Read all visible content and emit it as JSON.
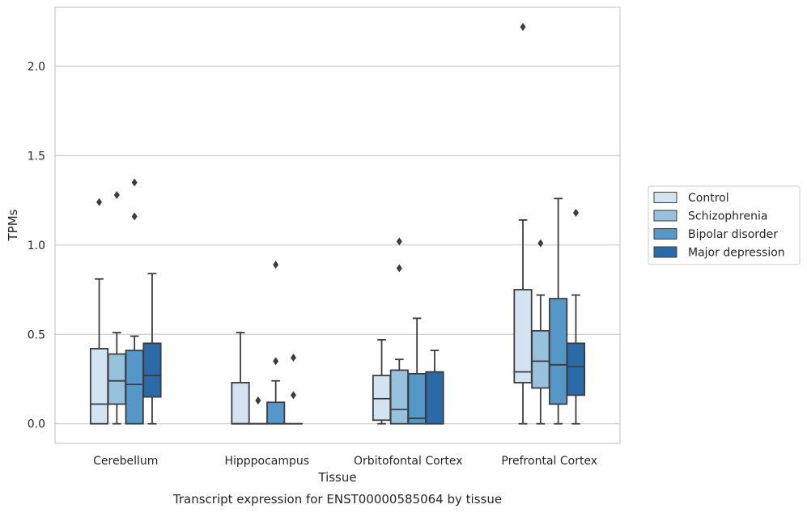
{
  "chart_data": {
    "type": "boxplot",
    "title": "",
    "xlabel": "Tissue",
    "ylabel": "TPMs",
    "caption": "Transcript expression for ENST00000585064 by tissue",
    "ylim": [
      -0.11,
      2.33
    ],
    "yticks": [
      "0.0",
      "0.5",
      "1.0",
      "1.5",
      "2.0"
    ],
    "grid": "horizontal",
    "legend_position": "right",
    "categories": [
      "Cerebellum",
      "Hipppocampus",
      "Orbitofontal Cortex",
      "Prefrontal Cortex"
    ],
    "series": [
      {
        "name": "Control",
        "color": "#d4e3f1",
        "boxes": [
          {
            "whislo": 0.0,
            "q1": 0.0,
            "med": 0.11,
            "q3": 0.42,
            "whishi": 0.81,
            "fliers": [
              1.24
            ]
          },
          {
            "whislo": 0.0,
            "q1": 0.0,
            "med": 0.0,
            "q3": 0.23,
            "whishi": 0.51,
            "fliers": []
          },
          {
            "whislo": 0.0,
            "q1": 0.02,
            "med": 0.14,
            "q3": 0.27,
            "whishi": 0.47,
            "fliers": []
          },
          {
            "whislo": 0.0,
            "q1": 0.23,
            "med": 0.29,
            "q3": 0.75,
            "whishi": 1.14,
            "fliers": [
              2.22
            ]
          }
        ]
      },
      {
        "name": "Schizophrenia",
        "color": "#98c1dd",
        "boxes": [
          {
            "whislo": 0.0,
            "q1": 0.11,
            "med": 0.24,
            "q3": 0.39,
            "whishi": 0.51,
            "fliers": [
              1.28
            ]
          },
          {
            "whislo": 0.0,
            "q1": 0.0,
            "med": 0.0,
            "q3": 0.0,
            "whishi": 0.0,
            "fliers": [
              0.13
            ]
          },
          {
            "whislo": 0.0,
            "q1": 0.0,
            "med": 0.08,
            "q3": 0.3,
            "whishi": 0.36,
            "fliers": [
              0.87,
              1.02
            ]
          },
          {
            "whislo": 0.0,
            "q1": 0.2,
            "med": 0.35,
            "q3": 0.52,
            "whishi": 0.72,
            "fliers": [
              1.01
            ]
          }
        ]
      },
      {
        "name": "Bipolar disorder",
        "color": "#5597c6",
        "boxes": [
          {
            "whislo": 0.0,
            "q1": 0.0,
            "med": 0.22,
            "q3": 0.41,
            "whishi": 0.49,
            "fliers": [
              1.16,
              1.35
            ]
          },
          {
            "whislo": 0.0,
            "q1": 0.0,
            "med": 0.0,
            "q3": 0.12,
            "whishi": 0.24,
            "fliers": [
              0.35,
              0.89
            ]
          },
          {
            "whislo": 0.0,
            "q1": 0.0,
            "med": 0.03,
            "q3": 0.28,
            "whishi": 0.59,
            "fliers": []
          },
          {
            "whislo": 0.0,
            "q1": 0.11,
            "med": 0.33,
            "q3": 0.7,
            "whishi": 1.26,
            "fliers": []
          }
        ]
      },
      {
        "name": "Major depression",
        "color": "#2b6aa8",
        "boxes": [
          {
            "whislo": 0.0,
            "q1": 0.15,
            "med": 0.27,
            "q3": 0.45,
            "whishi": 0.84,
            "fliers": []
          },
          {
            "whislo": 0.0,
            "q1": 0.0,
            "med": 0.0,
            "q3": 0.0,
            "whishi": 0.0,
            "fliers": [
              0.16,
              0.37
            ]
          },
          {
            "whislo": 0.0,
            "q1": 0.0,
            "med": 0.0,
            "q3": 0.29,
            "whishi": 0.41,
            "fliers": []
          },
          {
            "whislo": 0.0,
            "q1": 0.16,
            "med": 0.32,
            "q3": 0.45,
            "whishi": 0.72,
            "fliers": [
              1.18
            ]
          }
        ]
      }
    ]
  }
}
